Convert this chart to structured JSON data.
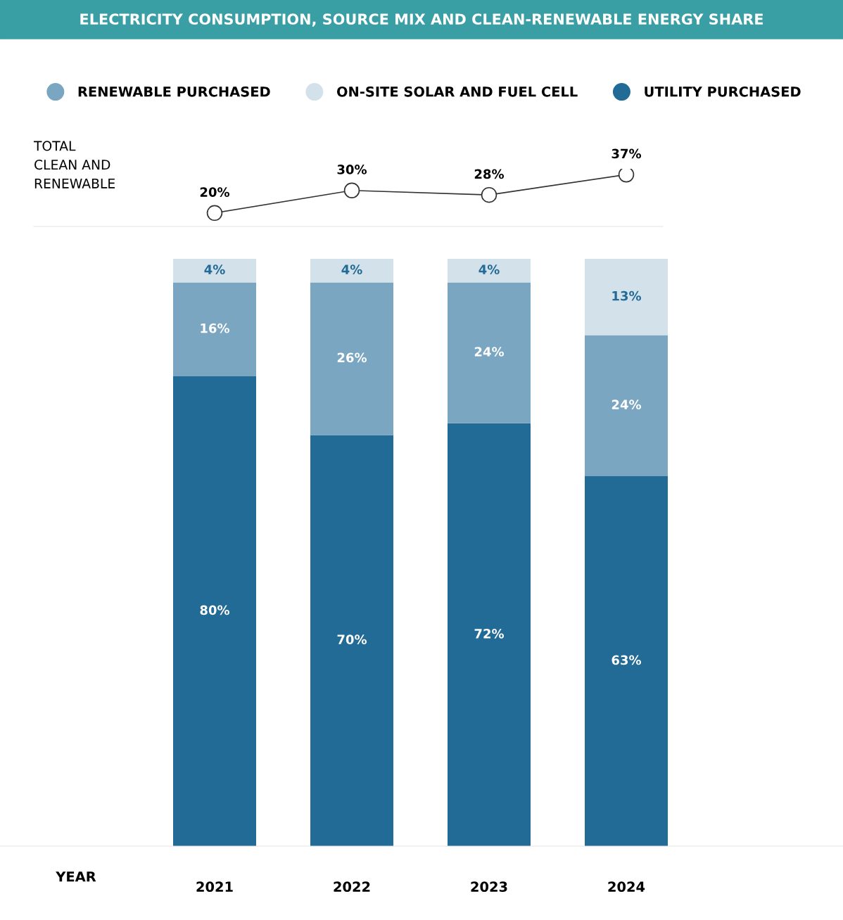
{
  "chart_data": [
    {
      "type": "line",
      "title": "ELECTRICITY CONSUMPTION, SOURCE MIX AND CLEAN-RENEWABLE ENERGY SHARE",
      "ylabel": "TOTAL\nCLEAN AND\nRENEWABLE",
      "categories": [
        "2021",
        "2022",
        "2023",
        "2024"
      ],
      "series": [
        {
          "color": "#333333",
          "values": [
            20,
            30,
            28,
            37
          ],
          "value_labels": [
            "20%",
            "30%",
            "28%",
            "37%"
          ]
        }
      ],
      "tick_labels": false,
      "marker": "circle",
      "line_style": "solid",
      "grid": false,
      "legend": false
    },
    {
      "type": "bar",
      "stacked": true,
      "xlabel": "YEAR",
      "categories": [
        "2021",
        "2022",
        "2023",
        "2024"
      ],
      "series": [
        {
          "name": "UTILITY PURCHASED",
          "color": "#226b96",
          "values": [
            80,
            70,
            72,
            63
          ],
          "value_labels": [
            "80%",
            "70%",
            "72%",
            "63%"
          ]
        },
        {
          "name": "RENEWABLE PURCHASED",
          "color": "#7aa6c2",
          "values": [
            16,
            26,
            24,
            24
          ],
          "value_labels": [
            "16%",
            "26%",
            "24%",
            "24%"
          ]
        },
        {
          "name": "ON-SITE SOLAR AND FUEL CELL",
          "color": "#d3e1ea",
          "values": [
            4,
            4,
            4,
            13
          ],
          "value_labels": [
            "4%",
            "4%",
            "4%",
            "13%"
          ]
        }
      ],
      "tick_labels": "x",
      "grid": false,
      "legend": "top"
    }
  ]
}
